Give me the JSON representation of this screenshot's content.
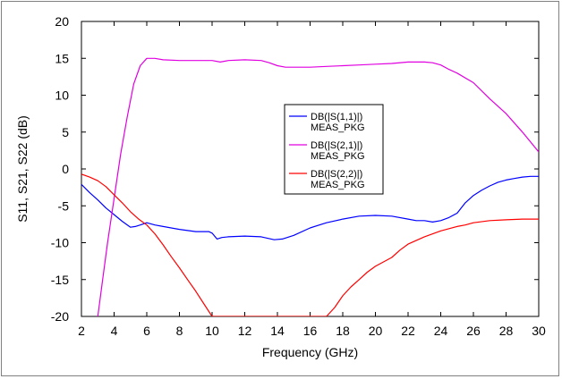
{
  "chart_data": {
    "type": "line",
    "xlabel": "Frequency (GHz)",
    "ylabel": "S11, S21, S22 (dB)",
    "xlim": [
      2,
      30
    ],
    "ylim": [
      -20,
      20
    ],
    "xticks": [
      2,
      4,
      6,
      8,
      10,
      12,
      14,
      16,
      18,
      20,
      22,
      24,
      26,
      28,
      30
    ],
    "yticks": [
      -20,
      -15,
      -10,
      -5,
      0,
      5,
      10,
      15,
      20
    ],
    "grid": false,
    "legend_position": "center",
    "series": [
      {
        "name": "DB(|S(1,1)|)",
        "subname": "MEAS_PKG",
        "color": "#0000ff",
        "x": [
          2,
          2.5,
          3,
          3.5,
          4,
          4.5,
          5,
          5.3,
          5.6,
          6,
          6.5,
          7,
          8,
          9,
          9.8,
          10,
          10.3,
          10.6,
          11,
          12,
          13,
          13.8,
          14.3,
          15,
          16,
          17,
          18,
          19,
          20,
          21,
          22,
          22.5,
          23,
          23.5,
          24,
          24.5,
          25,
          25.5,
          26,
          26.5,
          27,
          27.5,
          28,
          28.5,
          29,
          29.5,
          30
        ],
        "y": [
          -2.1,
          -3.2,
          -4.2,
          -5.3,
          -6.2,
          -7.1,
          -7.9,
          -7.8,
          -7.6,
          -7.3,
          -7.6,
          -7.8,
          -8.2,
          -8.5,
          -8.5,
          -8.7,
          -9.5,
          -9.3,
          -9.2,
          -9.1,
          -9.2,
          -9.6,
          -9.5,
          -9.0,
          -8.0,
          -7.3,
          -6.8,
          -6.4,
          -6.3,
          -6.4,
          -6.8,
          -7.0,
          -7.0,
          -7.2,
          -7.0,
          -6.6,
          -6.0,
          -4.6,
          -3.6,
          -2.9,
          -2.3,
          -1.8,
          -1.5,
          -1.3,
          -1.1,
          -1.0,
          -1.0
        ]
      },
      {
        "name": "DB(|S(2,1)|)",
        "subname": "MEAS_PKG",
        "color": "#e000e0",
        "x": [
          3.0,
          3.3,
          3.6,
          4.0,
          4.4,
          4.8,
          5.2,
          5.6,
          6.0,
          6.5,
          7,
          8,
          9,
          10,
          10.5,
          11,
          12,
          13,
          13.5,
          14,
          14.5,
          15,
          16,
          17,
          18,
          19,
          20,
          21,
          22,
          23,
          23.5,
          24,
          24.5,
          25,
          26,
          27,
          28,
          29,
          30
        ],
        "y": [
          -20,
          -15,
          -10,
          -4,
          2,
          7,
          11.5,
          14.0,
          15.0,
          15.0,
          14.8,
          14.7,
          14.7,
          14.7,
          14.5,
          14.7,
          14.8,
          14.7,
          14.4,
          14.0,
          13.8,
          13.8,
          13.8,
          13.9,
          14.0,
          14.1,
          14.2,
          14.3,
          14.5,
          14.5,
          14.4,
          14.1,
          13.5,
          13.0,
          11.7,
          9.5,
          7.5,
          5.0,
          2.3
        ]
      },
      {
        "name": "DB(|S(2,2)|)",
        "subname": "MEAS_PKG",
        "color": "#ff0000",
        "x": [
          2,
          2.5,
          3,
          3.5,
          4,
          4.5,
          5,
          5.5,
          6,
          6.5,
          7,
          7.5,
          8,
          8.5,
          9,
          9.5,
          10,
          17,
          17.5,
          18,
          18.5,
          19,
          19.5,
          20,
          21,
          21.5,
          22,
          23,
          24,
          25,
          25.5,
          26,
          27,
          28,
          29,
          30
        ],
        "y": [
          -0.7,
          -1.1,
          -1.6,
          -2.4,
          -3.5,
          -4.6,
          -5.8,
          -6.8,
          -7.6,
          -8.8,
          -10.3,
          -11.9,
          -13.4,
          -15.0,
          -16.6,
          -18.3,
          -20,
          -20,
          -18.8,
          -17.2,
          -16.0,
          -15.0,
          -14.0,
          -13.2,
          -12.0,
          -11.0,
          -10.2,
          -9.2,
          -8.4,
          -7.8,
          -7.6,
          -7.3,
          -7.0,
          -6.9,
          -6.8,
          -6.8
        ]
      }
    ]
  }
}
